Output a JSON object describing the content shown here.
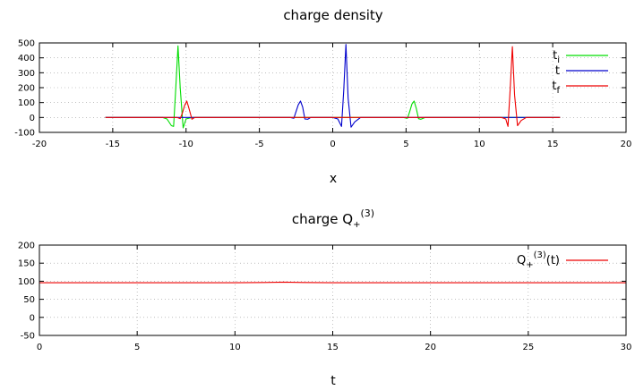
{
  "chart_data": [
    {
      "type": "line",
      "title": "charge density",
      "xlabel": "x",
      "ylabel": "",
      "xlim": [
        -20,
        20
      ],
      "ylim": [
        -100,
        500
      ],
      "xticks": [
        -20,
        -15,
        -10,
        -5,
        0,
        5,
        10,
        15,
        20
      ],
      "yticks": [
        -100,
        0,
        100,
        200,
        300,
        400,
        500
      ],
      "grid": true,
      "legend_position": "top-right",
      "series": [
        {
          "name": "t_i",
          "legend_main": "t",
          "legend_sub": "i",
          "color": "#00dd00",
          "x": [
            -15.5,
            -11.6,
            -11.3,
            -11.0,
            -10.85,
            -10.7,
            -10.55,
            -10.4,
            -10.2,
            -10.0,
            -9.6,
            -5.0,
            4.8,
            5.1,
            5.25,
            5.4,
            5.55,
            5.7,
            5.85,
            6.0,
            6.3,
            15.5
          ],
          "y": [
            0,
            0,
            -10,
            -55,
            -60,
            200,
            480,
            200,
            -70,
            -10,
            0,
            0,
            0,
            -5,
            40,
            90,
            110,
            60,
            -8,
            -12,
            0,
            0
          ]
        },
        {
          "name": "t",
          "legend_main": "t",
          "legend_sub": "",
          "color": "#0000cc",
          "x": [
            -15.5,
            -2.9,
            -2.65,
            -2.5,
            -2.35,
            -2.2,
            -2.05,
            -1.9,
            -1.7,
            -1.5,
            0.0,
            0.35,
            0.6,
            0.75,
            0.9,
            1.05,
            1.25,
            1.5,
            1.9,
            15.5
          ],
          "y": [
            0,
            0,
            -5,
            40,
            85,
            110,
            70,
            -10,
            -12,
            0,
            0,
            -10,
            -60,
            180,
            490,
            130,
            -65,
            -30,
            0,
            0
          ]
        },
        {
          "name": "t_f",
          "legend_main": "t",
          "legend_sub": "f",
          "color": "#ee0000",
          "x": [
            -15.5,
            -10.6,
            -10.4,
            -10.25,
            -10.1,
            -9.95,
            -9.8,
            -9.6,
            -9.4,
            11.5,
            11.8,
            11.95,
            12.1,
            12.25,
            12.4,
            12.6,
            12.85,
            13.2,
            15.5
          ],
          "y": [
            0,
            0,
            -8,
            30,
            80,
            110,
            60,
            -12,
            0,
            0,
            -10,
            -60,
            190,
            475,
            150,
            -55,
            -20,
            0,
            0
          ]
        }
      ]
    },
    {
      "type": "line",
      "title_main": "charge Q",
      "title_sub": "+",
      "title_sup": "(3)",
      "xlabel": "t",
      "ylabel": "",
      "xlim": [
        0,
        30
      ],
      "ylim": [
        -50,
        200
      ],
      "xticks": [
        0,
        5,
        10,
        15,
        20,
        25,
        30
      ],
      "yticks": [
        -50,
        0,
        50,
        100,
        150,
        200
      ],
      "grid": true,
      "legend_position": "top-right",
      "series": [
        {
          "name": "Q+(3)(t)",
          "legend_main": "Q",
          "legend_sub": "+",
          "legend_sup": "(3)",
          "legend_tail": "(t)",
          "color": "#ee0000",
          "x": [
            0,
            5,
            10,
            11.5,
            12.5,
            13.5,
            15,
            20,
            25,
            30
          ],
          "y": [
            96,
            96,
            96,
            96.5,
            97.5,
            96.5,
            96,
            96,
            96,
            96
          ]
        }
      ]
    }
  ]
}
